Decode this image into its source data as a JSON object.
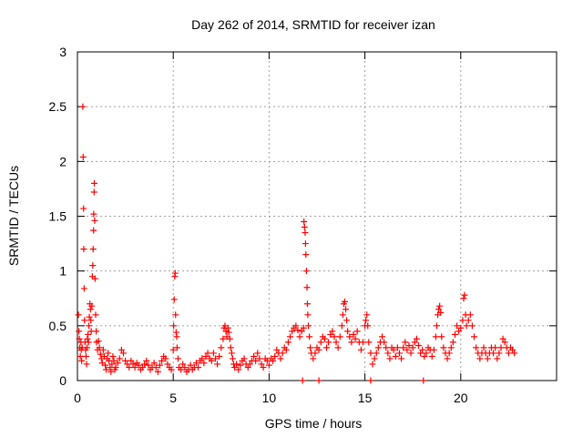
{
  "chart_data": {
    "type": "scatter",
    "title": "Day 262 of 2014, SRMTID for receiver izan",
    "xlabel": "GPS time / hours",
    "ylabel": "SRMTID / TECUs",
    "xlim": [
      0,
      25
    ],
    "ylim": [
      0,
      3
    ],
    "xticks": [
      0,
      5,
      10,
      15,
      20
    ],
    "yticks": [
      0,
      0.5,
      1,
      1.5,
      2,
      2.5,
      3
    ],
    "ytick_labels": [
      "0",
      "0.5",
      "1",
      "1.5",
      "2",
      "2.5",
      "3"
    ],
    "grid": true,
    "marker": "+",
    "marker_color": "#ff0000",
    "series": [
      {
        "name": "SRMTID",
        "points": [
          [
            0.05,
            0.6
          ],
          [
            0.08,
            0.45
          ],
          [
            0.1,
            0.38
          ],
          [
            0.12,
            0.3
          ],
          [
            0.15,
            0.22
          ],
          [
            0.18,
            0.35
          ],
          [
            0.2,
            0.28
          ],
          [
            0.22,
            0.18
          ],
          [
            0.25,
            0.3
          ],
          [
            0.28,
            2.5
          ],
          [
            0.3,
            2.04
          ],
          [
            0.32,
            1.57
          ],
          [
            0.33,
            1.2
          ],
          [
            0.35,
            0.84
          ],
          [
            0.37,
            0.55
          ],
          [
            0.4,
            0.35
          ],
          [
            0.42,
            0.28
          ],
          [
            0.45,
            0.22
          ],
          [
            0.48,
            0.15
          ],
          [
            0.5,
            0.3
          ],
          [
            0.52,
            0.38
          ],
          [
            0.55,
            0.42
          ],
          [
            0.58,
            0.35
          ],
          [
            0.6,
            0.5
          ],
          [
            0.62,
            0.58
          ],
          [
            0.65,
            0.7
          ],
          [
            0.68,
            0.65
          ],
          [
            0.7,
            0.55
          ],
          [
            0.72,
            0.45
          ],
          [
            0.75,
            0.68
          ],
          [
            0.78,
            0.95
          ],
          [
            0.8,
            1.05
          ],
          [
            0.82,
            1.2
          ],
          [
            0.84,
            1.37
          ],
          [
            0.85,
            1.52
          ],
          [
            0.87,
            1.72
          ],
          [
            0.88,
            1.8
          ],
          [
            0.9,
            1.46
          ],
          [
            0.92,
            0.93
          ],
          [
            0.95,
            0.6
          ],
          [
            0.98,
            0.45
          ],
          [
            1.0,
            0.35
          ],
          [
            1.05,
            0.28
          ],
          [
            1.1,
            0.36
          ],
          [
            1.15,
            0.3
          ],
          [
            1.2,
            0.24
          ],
          [
            1.25,
            0.2
          ],
          [
            1.3,
            0.16
          ],
          [
            1.35,
            0.28
          ],
          [
            1.4,
            0.22
          ],
          [
            1.45,
            0.14
          ],
          [
            1.5,
            0.1
          ],
          [
            1.55,
            0.2
          ],
          [
            1.6,
            0.25
          ],
          [
            1.65,
            0.18
          ],
          [
            1.7,
            0.12
          ],
          [
            1.75,
            0.08
          ],
          [
            1.8,
            0.15
          ],
          [
            1.85,
            0.22
          ],
          [
            1.9,
            0.18
          ],
          [
            1.95,
            0.1
          ],
          [
            2.0,
            0.12
          ],
          [
            2.1,
            0.16
          ],
          [
            2.2,
            0.2
          ],
          [
            2.3,
            0.28
          ],
          [
            2.4,
            0.25
          ],
          [
            2.5,
            0.18
          ],
          [
            2.6,
            0.15
          ],
          [
            2.7,
            0.12
          ],
          [
            2.8,
            0.18
          ],
          [
            2.9,
            0.15
          ],
          [
            3.0,
            0.12
          ],
          [
            3.1,
            0.16
          ],
          [
            3.2,
            0.14
          ],
          [
            3.3,
            0.1
          ],
          [
            3.4,
            0.12
          ],
          [
            3.5,
            0.15
          ],
          [
            3.6,
            0.18
          ],
          [
            3.7,
            0.14
          ],
          [
            3.8,
            0.1
          ],
          [
            3.9,
            0.12
          ],
          [
            4.0,
            0.16
          ],
          [
            4.1,
            0.12
          ],
          [
            4.2,
            0.08
          ],
          [
            4.3,
            0.14
          ],
          [
            4.4,
            0.18
          ],
          [
            4.5,
            0.22
          ],
          [
            4.6,
            0.2
          ],
          [
            4.7,
            0.15
          ],
          [
            4.8,
            0.12
          ],
          [
            4.9,
            0.1
          ],
          [
            5.0,
            0.28
          ],
          [
            5.02,
            0.5
          ],
          [
            5.05,
            0.74
          ],
          [
            5.08,
            0.95
          ],
          [
            5.1,
            0.98
          ],
          [
            5.12,
            0.6
          ],
          [
            5.15,
            0.44
          ],
          [
            5.18,
            0.4
          ],
          [
            5.2,
            0.3
          ],
          [
            5.25,
            0.2
          ],
          [
            5.3,
            0.12
          ],
          [
            5.4,
            0.1
          ],
          [
            5.5,
            0.15
          ],
          [
            5.6,
            0.12
          ],
          [
            5.7,
            0.08
          ],
          [
            5.8,
            0.1
          ],
          [
            5.9,
            0.14
          ],
          [
            6.0,
            0.1
          ],
          [
            6.1,
            0.12
          ],
          [
            6.2,
            0.16
          ],
          [
            6.3,
            0.12
          ],
          [
            6.4,
            0.18
          ],
          [
            6.5,
            0.2
          ],
          [
            6.6,
            0.16
          ],
          [
            6.7,
            0.22
          ],
          [
            6.8,
            0.25
          ],
          [
            6.9,
            0.2
          ],
          [
            7.0,
            0.18
          ],
          [
            7.1,
            0.25
          ],
          [
            7.2,
            0.2
          ],
          [
            7.3,
            0.15
          ],
          [
            7.4,
            0.22
          ],
          [
            7.5,
            0.3
          ],
          [
            7.6,
            0.38
          ],
          [
            7.65,
            0.48
          ],
          [
            7.7,
            0.5
          ],
          [
            7.75,
            0.45
          ],
          [
            7.8,
            0.4
          ],
          [
            7.85,
            0.48
          ],
          [
            7.9,
            0.44
          ],
          [
            7.95,
            0.38
          ],
          [
            8.0,
            0.3
          ],
          [
            8.05,
            0.25
          ],
          [
            8.1,
            0.2
          ],
          [
            8.15,
            0.15
          ],
          [
            8.2,
            0.12
          ],
          [
            8.3,
            0.15
          ],
          [
            8.4,
            0.1
          ],
          [
            8.5,
            0.14
          ],
          [
            8.6,
            0.18
          ],
          [
            8.7,
            0.2
          ],
          [
            8.8,
            0.15
          ],
          [
            8.9,
            0.12
          ],
          [
            9.0,
            0.15
          ],
          [
            9.1,
            0.18
          ],
          [
            9.2,
            0.22
          ],
          [
            9.3,
            0.18
          ],
          [
            9.4,
            0.25
          ],
          [
            9.5,
            0.2
          ],
          [
            9.6,
            0.15
          ],
          [
            9.7,
            0.12
          ],
          [
            9.8,
            0.2
          ],
          [
            9.9,
            0.18
          ],
          [
            10.0,
            0.14
          ],
          [
            10.1,
            0.2
          ],
          [
            10.2,
            0.18
          ],
          [
            10.3,
            0.22
          ],
          [
            10.4,
            0.28
          ],
          [
            10.5,
            0.25
          ],
          [
            10.6,
            0.2
          ],
          [
            10.7,
            0.25
          ],
          [
            10.8,
            0.3
          ],
          [
            10.9,
            0.28
          ],
          [
            11.0,
            0.35
          ],
          [
            11.1,
            0.4
          ],
          [
            11.2,
            0.45
          ],
          [
            11.3,
            0.48
          ],
          [
            11.4,
            0.5
          ],
          [
            11.5,
            0.46
          ],
          [
            11.6,
            0.4
          ],
          [
            11.7,
            0.45
          ],
          [
            11.8,
            0.48
          ],
          [
            11.82,
            1.45
          ],
          [
            11.85,
            1.4
          ],
          [
            11.88,
            1.35
          ],
          [
            11.9,
            1.25
          ],
          [
            11.92,
            1.15
          ],
          [
            11.95,
            1.0
          ],
          [
            11.98,
            0.85
          ],
          [
            12.0,
            0.7
          ],
          [
            12.02,
            0.6
          ],
          [
            12.05,
            0.5
          ],
          [
            12.1,
            0.4
          ],
          [
            12.15,
            0.3
          ],
          [
            12.2,
            0.25
          ],
          [
            12.3,
            0.2
          ],
          [
            12.4,
            0.25
          ],
          [
            12.5,
            0.3
          ],
          [
            12.6,
            0.28
          ],
          [
            12.7,
            0.35
          ],
          [
            12.8,
            0.4
          ],
          [
            12.9,
            0.38
          ],
          [
            13.0,
            0.3
          ],
          [
            13.1,
            0.35
          ],
          [
            13.2,
            0.42
          ],
          [
            13.3,
            0.45
          ],
          [
            13.4,
            0.4
          ],
          [
            13.5,
            0.35
          ],
          [
            13.6,
            0.3
          ],
          [
            13.7,
            0.4
          ],
          [
            13.8,
            0.5
          ],
          [
            13.85,
            0.6
          ],
          [
            13.9,
            0.7
          ],
          [
            13.95,
            0.72
          ],
          [
            14.0,
            0.65
          ],
          [
            14.05,
            0.55
          ],
          [
            14.1,
            0.45
          ],
          [
            14.2,
            0.4
          ],
          [
            14.3,
            0.35
          ],
          [
            14.4,
            0.42
          ],
          [
            14.5,
            0.38
          ],
          [
            14.6,
            0.45
          ],
          [
            14.7,
            0.35
          ],
          [
            14.8,
            0.28
          ],
          [
            14.9,
            0.35
          ],
          [
            15.0,
            0.5
          ],
          [
            15.05,
            0.55
          ],
          [
            15.1,
            0.6
          ],
          [
            15.15,
            0.5
          ],
          [
            15.2,
            0.35
          ],
          [
            15.3,
            0.25
          ],
          [
            15.4,
            0.15
          ],
          [
            15.5,
            0.2
          ],
          [
            15.6,
            0.25
          ],
          [
            15.7,
            0.3
          ],
          [
            15.8,
            0.35
          ],
          [
            15.9,
            0.4
          ],
          [
            16.0,
            0.35
          ],
          [
            16.1,
            0.3
          ],
          [
            16.2,
            0.25
          ],
          [
            16.3,
            0.2
          ],
          [
            16.4,
            0.3
          ],
          [
            16.5,
            0.28
          ],
          [
            16.6,
            0.22
          ],
          [
            16.7,
            0.3
          ],
          [
            16.8,
            0.25
          ],
          [
            16.9,
            0.2
          ],
          [
            17.0,
            0.3
          ],
          [
            17.1,
            0.35
          ],
          [
            17.2,
            0.28
          ],
          [
            17.3,
            0.32
          ],
          [
            17.4,
            0.25
          ],
          [
            17.5,
            0.3
          ],
          [
            17.6,
            0.35
          ],
          [
            17.7,
            0.38
          ],
          [
            17.8,
            0.32
          ],
          [
            17.9,
            0.25
          ],
          [
            18.0,
            0.28
          ],
          [
            18.1,
            0.22
          ],
          [
            18.2,
            0.25
          ],
          [
            18.3,
            0.3
          ],
          [
            18.4,
            0.28
          ],
          [
            18.5,
            0.22
          ],
          [
            18.6,
            0.28
          ],
          [
            18.7,
            0.4
          ],
          [
            18.75,
            0.5
          ],
          [
            18.8,
            0.6
          ],
          [
            18.85,
            0.65
          ],
          [
            18.9,
            0.68
          ],
          [
            18.95,
            0.62
          ],
          [
            19.0,
            0.4
          ],
          [
            19.1,
            0.3
          ],
          [
            19.2,
            0.25
          ],
          [
            19.3,
            0.2
          ],
          [
            19.4,
            0.25
          ],
          [
            19.5,
            0.3
          ],
          [
            19.6,
            0.35
          ],
          [
            19.7,
            0.42
          ],
          [
            19.8,
            0.5
          ],
          [
            19.9,
            0.45
          ],
          [
            20.0,
            0.48
          ],
          [
            20.1,
            0.55
          ],
          [
            20.15,
            0.75
          ],
          [
            20.2,
            0.78
          ],
          [
            20.25,
            0.6
          ],
          [
            20.3,
            0.5
          ],
          [
            20.4,
            0.55
          ],
          [
            20.5,
            0.6
          ],
          [
            20.6,
            0.5
          ],
          [
            20.7,
            0.4
          ],
          [
            20.8,
            0.3
          ],
          [
            20.9,
            0.25
          ],
          [
            21.0,
            0.2
          ],
          [
            21.1,
            0.25
          ],
          [
            21.2,
            0.3
          ],
          [
            21.3,
            0.25
          ],
          [
            21.4,
            0.2
          ],
          [
            21.5,
            0.25
          ],
          [
            21.6,
            0.3
          ],
          [
            21.7,
            0.25
          ],
          [
            21.8,
            0.3
          ],
          [
            21.9,
            0.2
          ],
          [
            22.0,
            0.25
          ],
          [
            22.1,
            0.3
          ],
          [
            22.2,
            0.38
          ],
          [
            22.3,
            0.35
          ],
          [
            22.4,
            0.3
          ],
          [
            22.5,
            0.25
          ],
          [
            22.6,
            0.3
          ],
          [
            22.7,
            0.28
          ],
          [
            22.8,
            0.25
          ],
          [
            11.75,
            0.0
          ],
          [
            12.6,
            0.0
          ],
          [
            15.3,
            0.0
          ],
          [
            18.05,
            0.0
          ]
        ]
      }
    ]
  }
}
